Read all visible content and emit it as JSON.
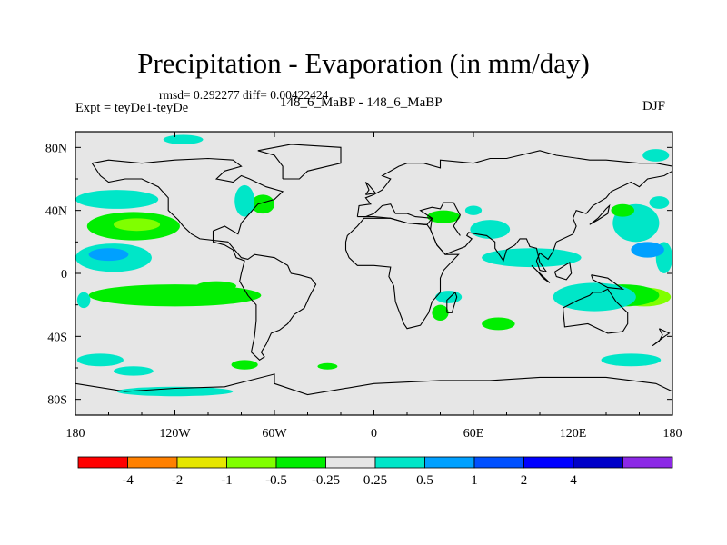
{
  "header": {
    "title": "Precipitation - Evaporation (in mm/day)",
    "stats": "rmsd= 0.292277 diff= 0.00422424",
    "expt": "Expt = teyDe1-teyDe",
    "runs": "148_6_MaBP - 148_6_MaBP",
    "season": "DJF"
  },
  "chart_data": {
    "type": "heatmap",
    "title": "Precipitation - Evaporation (in mm/day)",
    "subtitle": "148_6_MaBP - 148_6_MaBP",
    "xlabel": "",
    "ylabel": "",
    "xlim": [
      -180,
      180
    ],
    "ylim": [
      -90,
      90
    ],
    "x_ticks": [
      {
        "value": -180,
        "label": "180"
      },
      {
        "value": -120,
        "label": "120W"
      },
      {
        "value": -60,
        "label": "60W"
      },
      {
        "value": 0,
        "label": "0"
      },
      {
        "value": 60,
        "label": "60E"
      },
      {
        "value": 120,
        "label": "120E"
      },
      {
        "value": 180,
        "label": "180"
      }
    ],
    "y_ticks": [
      {
        "value": 80,
        "label": "80N"
      },
      {
        "value": 40,
        "label": "40N"
      },
      {
        "value": 0,
        "label": "0"
      },
      {
        "value": -40,
        "label": "40S"
      },
      {
        "value": -80,
        "label": "80S"
      }
    ],
    "background_color": "#e6e6e6",
    "colorbar": {
      "colors": [
        "#ff0000",
        "#ff8000",
        "#e6e600",
        "#80ff00",
        "#00ee00",
        "#e6e6e6",
        "#00e6c8",
        "#00a0ff",
        "#0050ff",
        "#0000ff",
        "#0000c8",
        "#8c28e6"
      ],
      "labels": [
        "-4",
        "-2",
        "-1",
        "-0.5",
        "-0.25",
        "0.25",
        "0.5",
        "1",
        "2",
        "4"
      ]
    },
    "regions": [
      {
        "category": "-0.5",
        "color": "#80ff00",
        "cx": 163,
        "cy": -15,
        "rx": 16,
        "ry": 6
      },
      {
        "category": "-0.25",
        "color": "#00ee00",
        "cx": 150,
        "cy": -14,
        "rx": 22,
        "ry": 7
      },
      {
        "category": "0.25",
        "color": "#00e6c8",
        "cx": 133,
        "cy": -15,
        "rx": 25,
        "ry": 9
      },
      {
        "category": "-0.5",
        "color": "#80ff00",
        "cx": -125,
        "cy": -14,
        "rx": 40,
        "ry": 5
      },
      {
        "category": "-0.25",
        "color": "#00ee00",
        "cx": -120,
        "cy": -14,
        "rx": 52,
        "ry": 7
      },
      {
        "category": "0.25",
        "color": "#00e6c8",
        "cx": -175,
        "cy": -17,
        "rx": 4,
        "ry": 5
      },
      {
        "category": "0.25",
        "color": "#00e6c8",
        "cx": -157,
        "cy": 10,
        "rx": 23,
        "ry": 9
      },
      {
        "category": "0.5",
        "color": "#00a0ff",
        "cx": -160,
        "cy": 12,
        "rx": 12,
        "ry": 4
      },
      {
        "category": "0.25",
        "color": "#00e6c8",
        "cx": 175,
        "cy": 10,
        "rx": 5,
        "ry": 10
      },
      {
        "category": "-0.25",
        "color": "#00ee00",
        "cx": -145,
        "cy": 30,
        "rx": 28,
        "ry": 9
      },
      {
        "category": "-0.5",
        "color": "#80ff00",
        "cx": -143,
        "cy": 31,
        "rx": 14,
        "ry": 4
      },
      {
        "category": "0.25",
        "color": "#00e6c8",
        "cx": -155,
        "cy": 47,
        "rx": 25,
        "ry": 6
      },
      {
        "category": "0.25",
        "color": "#00e6c8",
        "cx": 158,
        "cy": 32,
        "rx": 14,
        "ry": 12
      },
      {
        "category": "0.5",
        "color": "#00a0ff",
        "cx": 165,
        "cy": 15,
        "rx": 10,
        "ry": 5
      },
      {
        "category": "-0.25",
        "color": "#00ee00",
        "cx": 150,
        "cy": 40,
        "rx": 7,
        "ry": 4
      },
      {
        "category": "0.25",
        "color": "#00e6c8",
        "cx": 172,
        "cy": 45,
        "rx": 6,
        "ry": 4
      },
      {
        "category": "0.25",
        "color": "#00e6c8",
        "cx": 95,
        "cy": 10,
        "rx": 30,
        "ry": 6
      },
      {
        "category": "0.25",
        "color": "#00e6c8",
        "cx": 70,
        "cy": 28,
        "rx": 12,
        "ry": 6
      },
      {
        "category": "-0.25",
        "color": "#00ee00",
        "cx": 42,
        "cy": 36,
        "rx": 10,
        "ry": 4
      },
      {
        "category": "-0.25",
        "color": "#00ee00",
        "cx": -67,
        "cy": 44,
        "rx": 7,
        "ry": 6
      },
      {
        "category": "0.25",
        "color": "#00e6c8",
        "cx": -78,
        "cy": 46,
        "rx": 6,
        "ry": 10
      },
      {
        "category": "-0.25",
        "color": "#00ee00",
        "cx": -95,
        "cy": -8,
        "rx": 12,
        "ry": 3
      },
      {
        "category": "-0.25",
        "color": "#00ee00",
        "cx": -78,
        "cy": -58,
        "rx": 8,
        "ry": 3
      },
      {
        "category": "-0.25",
        "color": "#00ee00",
        "cx": -28,
        "cy": -59,
        "rx": 6,
        "ry": 2
      },
      {
        "category": "0.25",
        "color": "#00e6c8",
        "cx": -165,
        "cy": -55,
        "rx": 14,
        "ry": 4
      },
      {
        "category": "0.25",
        "color": "#00e6c8",
        "cx": -145,
        "cy": -62,
        "rx": 12,
        "ry": 3
      },
      {
        "category": "0.25",
        "color": "#00e6c8",
        "cx": 155,
        "cy": -55,
        "rx": 18,
        "ry": 4
      },
      {
        "category": "0.25",
        "color": "#00e6c8",
        "cx": -120,
        "cy": -75,
        "rx": 35,
        "ry": 3
      },
      {
        "category": "-0.25",
        "color": "#00ee00",
        "cx": 40,
        "cy": -25,
        "rx": 5,
        "ry": 5
      },
      {
        "category": "0.25",
        "color": "#00e6c8",
        "cx": 45,
        "cy": -15,
        "rx": 8,
        "ry": 4
      },
      {
        "category": "-0.25",
        "color": "#00ee00",
        "cx": 75,
        "cy": -32,
        "rx": 10,
        "ry": 4
      },
      {
        "category": "0.25",
        "color": "#00e6c8",
        "cx": -115,
        "cy": 85,
        "rx": 12,
        "ry": 3
      },
      {
        "category": "0.25",
        "color": "#00e6c8",
        "cx": 170,
        "cy": 75,
        "rx": 8,
        "ry": 4
      },
      {
        "category": "0.25",
        "color": "#00e6c8",
        "cx": 60,
        "cy": 40,
        "rx": 5,
        "ry": 3
      }
    ],
    "coastlines": [
      [
        [
          -170,
          70
        ],
        [
          -160,
          72
        ],
        [
          -140,
          70
        ],
        [
          -120,
          72
        ],
        [
          -100,
          73
        ],
        [
          -85,
          72
        ],
        [
          -80,
          68
        ],
        [
          -90,
          65
        ],
        [
          -95,
          60
        ],
        [
          -85,
          58
        ],
        [
          -80,
          62
        ],
        [
          -75,
          60
        ],
        [
          -65,
          55
        ],
        [
          -55,
          52
        ],
        [
          -60,
          47
        ],
        [
          -70,
          44
        ],
        [
          -75,
          38
        ],
        [
          -80,
          32
        ],
        [
          -82,
          25
        ],
        [
          -90,
          30
        ],
        [
          -97,
          27
        ],
        [
          -97,
          20
        ],
        [
          -90,
          18
        ],
        [
          -85,
          15
        ],
        [
          -83,
          10
        ],
        [
          -78,
          8
        ],
        [
          -80,
          0
        ],
        [
          -81,
          -5
        ],
        [
          -76,
          -14
        ],
        [
          -71,
          -20
        ],
        [
          -71,
          -30
        ],
        [
          -72,
          -40
        ],
        [
          -74,
          -50
        ],
        [
          -69,
          -55
        ],
        [
          -66,
          -53
        ],
        [
          -68,
          -50
        ],
        [
          -65,
          -45
        ],
        [
          -62,
          -38
        ],
        [
          -57,
          -36
        ],
        [
          -52,
          -32
        ],
        [
          -48,
          -26
        ],
        [
          -42,
          -22
        ],
        [
          -39,
          -15
        ],
        [
          -35,
          -7
        ],
        [
          -38,
          -3
        ],
        [
          -45,
          -1
        ],
        [
          -50,
          0
        ],
        [
          -52,
          5
        ],
        [
          -60,
          10
        ],
        [
          -66,
          11
        ],
        [
          -72,
          12
        ],
        [
          -76,
          9
        ],
        [
          -80,
          10
        ],
        [
          -84,
          15
        ],
        [
          -88,
          20
        ],
        [
          -105,
          22
        ],
        [
          -110,
          25
        ],
        [
          -115,
          30
        ],
        [
          -118,
          34
        ],
        [
          -124,
          40
        ],
        [
          -124,
          48
        ],
        [
          -130,
          55
        ],
        [
          -140,
          60
        ],
        [
          -150,
          60
        ],
        [
          -160,
          58
        ],
        [
          -165,
          62
        ],
        [
          -170,
          70
        ]
      ],
      [
        [
          -55,
          60
        ],
        [
          -45,
          60
        ],
        [
          -40,
          65
        ],
        [
          -20,
          70
        ],
        [
          -20,
          80
        ],
        [
          -50,
          82
        ],
        [
          -70,
          78
        ],
        [
          -60,
          75
        ],
        [
          -55,
          68
        ],
        [
          -55,
          60
        ]
      ],
      [
        [
          -10,
          36
        ],
        [
          -5,
          36
        ],
        [
          0,
          38
        ],
        [
          5,
          43
        ],
        [
          10,
          44
        ],
        [
          13,
          38
        ],
        [
          20,
          38
        ],
        [
          25,
          36
        ],
        [
          35,
          35
        ],
        [
          32,
          31
        ],
        [
          30,
          31
        ],
        [
          20,
          32
        ],
        [
          10,
          35
        ],
        [
          0,
          36
        ],
        [
          -10,
          36
        ]
      ],
      [
        [
          -17,
          20
        ],
        [
          -17,
          15
        ],
        [
          -15,
          10
        ],
        [
          -10,
          5
        ],
        [
          0,
          5
        ],
        [
          10,
          4
        ],
        [
          9,
          -2
        ],
        [
          12,
          -8
        ],
        [
          13,
          -18
        ],
        [
          18,
          -32
        ],
        [
          20,
          -35
        ],
        [
          28,
          -33
        ],
        [
          33,
          -25
        ],
        [
          35,
          -18
        ],
        [
          40,
          -12
        ],
        [
          40,
          -3
        ],
        [
          42,
          2
        ],
        [
          51,
          12
        ],
        [
          43,
          12
        ],
        [
          38,
          18
        ],
        [
          34,
          28
        ],
        [
          32,
          31
        ],
        [
          20,
          32
        ],
        [
          10,
          35
        ],
        [
          -6,
          35
        ],
        [
          -10,
          30
        ],
        [
          -16,
          24
        ],
        [
          -17,
          20
        ]
      ],
      [
        [
          -10,
          36
        ],
        [
          -9,
          43
        ],
        [
          -2,
          44
        ],
        [
          -5,
          48
        ],
        [
          0,
          50
        ],
        [
          5,
          53
        ],
        [
          8,
          57
        ],
        [
          10,
          60
        ],
        [
          5,
          62
        ],
        [
          15,
          68
        ],
        [
          20,
          70
        ],
        [
          30,
          70
        ],
        [
          40,
          67
        ],
        [
          40,
          72
        ],
        [
          60,
          70
        ],
        [
          70,
          73
        ],
        [
          80,
          73
        ],
        [
          100,
          78
        ],
        [
          110,
          75
        ],
        [
          130,
          72
        ],
        [
          140,
          72
        ],
        [
          160,
          70
        ],
        [
          170,
          70
        ],
        [
          180,
          68
        ]
      ],
      [
        [
          180,
          65
        ],
        [
          175,
          62
        ],
        [
          165,
          60
        ],
        [
          160,
          55
        ],
        [
          155,
          58
        ],
        [
          143,
          52
        ],
        [
          140,
          48
        ],
        [
          132,
          43
        ],
        [
          128,
          38
        ],
        [
          122,
          40
        ],
        [
          120,
          35
        ],
        [
          122,
          30
        ],
        [
          120,
          25
        ],
        [
          110,
          20
        ],
        [
          108,
          14
        ],
        [
          105,
          9
        ],
        [
          100,
          13
        ],
        [
          98,
          8
        ],
        [
          100,
          2
        ],
        [
          104,
          1
        ],
        [
          100,
          7
        ],
        [
          98,
          16
        ],
        [
          94,
          17
        ],
        [
          92,
          22
        ],
        [
          88,
          22
        ],
        [
          85,
          18
        ],
        [
          80,
          15
        ],
        [
          78,
          8
        ],
        [
          73,
          16
        ],
        [
          73,
          20
        ],
        [
          68,
          24
        ],
        [
          62,
          25
        ],
        [
          57,
          26
        ],
        [
          56,
          24
        ],
        [
          59,
          22
        ],
        [
          55,
          17
        ],
        [
          45,
          13
        ],
        [
          43,
          12
        ],
        [
          38,
          18
        ],
        [
          34,
          28
        ],
        [
          35,
          35
        ],
        [
          28,
          40
        ],
        [
          35,
          42
        ],
        [
          40,
          41
        ],
        [
          42,
          45
        ],
        [
          48,
          45
        ],
        [
          52,
          37
        ],
        [
          48,
          30
        ],
        [
          50,
          27
        ],
        [
          52,
          24
        ]
      ],
      [
        [
          132,
          -12
        ],
        [
          137,
          -12
        ],
        [
          141,
          -10
        ],
        [
          146,
          -18
        ],
        [
          153,
          -25
        ],
        [
          153,
          -32
        ],
        [
          150,
          -37
        ],
        [
          141,
          -38
        ],
        [
          135,
          -35
        ],
        [
          129,
          -32
        ],
        [
          115,
          -34
        ],
        [
          114,
          -22
        ],
        [
          123,
          -17
        ],
        [
          130,
          -14
        ],
        [
          132,
          -12
        ]
      ],
      [
        [
          172,
          -35
        ],
        [
          178,
          -38
        ],
        [
          174,
          -41
        ],
        [
          168,
          -46
        ],
        [
          172,
          -43
        ],
        [
          174,
          -39
        ],
        [
          172,
          -35
        ]
      ],
      [
        [
          44,
          -25
        ],
        [
          47,
          -25
        ],
        [
          50,
          -15
        ],
        [
          49,
          -12
        ],
        [
          44,
          -17
        ],
        [
          44,
          -25
        ]
      ],
      [
        [
          -5,
          50
        ],
        [
          1,
          51
        ],
        [
          -3,
          56
        ],
        [
          -5,
          58
        ],
        [
          -3,
          53
        ],
        [
          -5,
          50
        ]
      ],
      [
        [
          130,
          31
        ],
        [
          135,
          34
        ],
        [
          141,
          38
        ],
        [
          142,
          43
        ],
        [
          140,
          41
        ],
        [
          135,
          35
        ],
        [
          130,
          31
        ]
      ],
      [
        [
          95,
          5
        ],
        [
          106,
          -6
        ],
        [
          102,
          -3
        ],
        [
          98,
          2
        ],
        [
          95,
          5
        ]
      ],
      [
        [
          109,
          1
        ],
        [
          118,
          7
        ],
        [
          119,
          0
        ],
        [
          116,
          -4
        ],
        [
          110,
          -2
        ],
        [
          109,
          1
        ]
      ],
      [
        [
          131,
          -1
        ],
        [
          141,
          -3
        ],
        [
          150,
          -10
        ],
        [
          141,
          -9
        ],
        [
          132,
          -4
        ],
        [
          131,
          -1
        ]
      ],
      [
        [
          -180,
          -70
        ],
        [
          -150,
          -75
        ],
        [
          -120,
          -73
        ],
        [
          -90,
          -72
        ],
        [
          -60,
          -64
        ],
        [
          -60,
          -70
        ],
        [
          -40,
          -77
        ],
        [
          0,
          -70
        ],
        [
          40,
          -68
        ],
        [
          70,
          -68
        ],
        [
          100,
          -66
        ],
        [
          140,
          -66
        ],
        [
          170,
          -70
        ],
        [
          180,
          -75
        ]
      ]
    ]
  }
}
